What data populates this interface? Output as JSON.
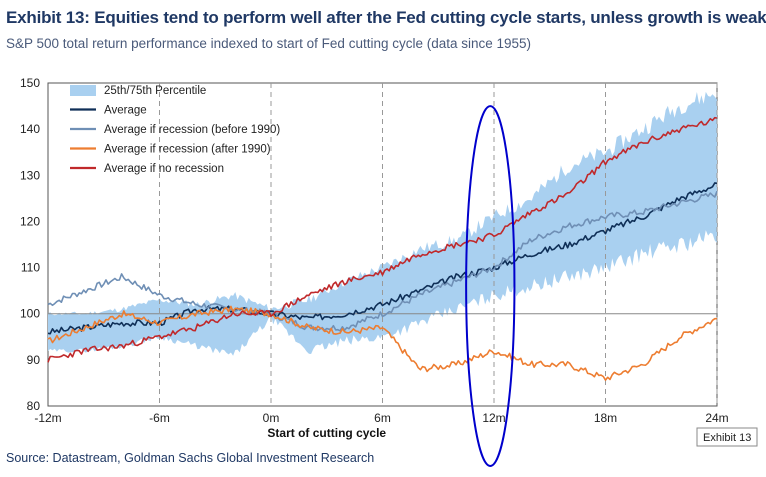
{
  "title": "Exhibit 13: Equities tend to perform well after the Fed cutting cycle starts, unless growth is weak",
  "subtitle": "S&P 500 total return performance indexed to start of Fed cutting cycle (data since 1955)",
  "source": "Source: Datastream, Goldman Sachs Global Investment Research",
  "stamp": "Exhibit 13",
  "chart_data": {
    "type": "line",
    "xlabel": "Start of cutting cycle",
    "ylabel": "",
    "xlim": [
      -12,
      24
    ],
    "ylim": [
      80,
      150
    ],
    "x_ticks": [
      -12,
      -6,
      0,
      6,
      12,
      18,
      24
    ],
    "x_tick_labels": [
      "-12m",
      "-6m",
      "0m",
      "6m",
      "12m",
      "18m",
      "24m"
    ],
    "y_ticks": [
      80,
      90,
      100,
      110,
      120,
      130,
      140,
      150
    ],
    "y_tick_labels": [
      "80",
      "90",
      "100",
      "110",
      "120",
      "130",
      "140",
      "150"
    ],
    "reference_line_y": 100,
    "vertical_gridlines_x": [
      -6,
      0,
      6,
      12,
      18,
      24
    ],
    "legend_position": "top-left",
    "band": {
      "name": "25th/75th Percentile",
      "color": "#a9d0f0",
      "x": [
        -12,
        -10,
        -8,
        -6,
        -4,
        -2,
        0,
        2,
        4,
        6,
        8,
        10,
        12,
        14,
        16,
        18,
        20,
        22,
        24
      ],
      "lower": [
        92,
        92,
        93,
        95,
        93,
        91,
        99,
        92,
        94,
        95,
        98,
        101,
        104,
        106,
        108,
        110,
        113,
        115,
        117
      ],
      "upper": [
        100,
        100,
        101,
        103,
        102,
        104,
        101,
        103,
        107,
        110,
        114,
        116,
        121,
        125,
        132,
        135,
        140,
        145,
        148
      ]
    },
    "series": [
      {
        "name": "Average",
        "color": "#0f2f57",
        "x": [
          -12,
          -10,
          -8,
          -6,
          -4,
          -2,
          0,
          2,
          4,
          6,
          8,
          10,
          12,
          14,
          16,
          18,
          20,
          22,
          24
        ],
        "values": [
          96,
          97,
          98,
          98,
          101,
          101,
          100,
          99,
          100,
          102,
          105,
          108,
          110,
          113,
          115,
          118,
          121,
          125,
          128
        ]
      },
      {
        "name": "Average if recession (before 1990)",
        "color": "#6f8fb5",
        "x": [
          -12,
          -10,
          -8,
          -6,
          -4,
          -2,
          0,
          2,
          4,
          6,
          8,
          10,
          12,
          14,
          16,
          18,
          20,
          22,
          24
        ],
        "values": [
          102,
          105,
          108,
          104,
          102,
          101,
          100,
          97,
          97,
          100,
          104,
          107,
          110,
          116,
          119,
          121,
          122,
          124,
          126
        ]
      },
      {
        "name": "Average if recession (after 1990)",
        "color": "#ed7d31",
        "x": [
          -12,
          -10,
          -8,
          -6,
          -4,
          -2,
          0,
          2,
          4,
          6,
          8,
          10,
          12,
          14,
          16,
          18,
          20,
          22,
          24
        ],
        "values": [
          94,
          97,
          100,
          98,
          100,
          101,
          100,
          97,
          96,
          97,
          88,
          89,
          92,
          89,
          89,
          86,
          89,
          95,
          99
        ]
      },
      {
        "name": "Average if no recession",
        "color": "#c0292b",
        "x": [
          -12,
          -10,
          -8,
          -6,
          -4,
          -2,
          0,
          2,
          4,
          6,
          8,
          10,
          12,
          14,
          16,
          18,
          20,
          22,
          24
        ],
        "values": [
          90,
          92,
          93,
          95,
          97,
          100,
          100,
          104,
          107,
          109,
          113,
          115,
          117,
          122,
          126,
          133,
          137,
          140,
          142
        ]
      }
    ],
    "annotations": [
      {
        "shape": "ellipse",
        "color": "#0000cc",
        "x_center": 11.8,
        "y_center": 106,
        "x_radius": 1.3,
        "y_radius": 39
      }
    ]
  }
}
